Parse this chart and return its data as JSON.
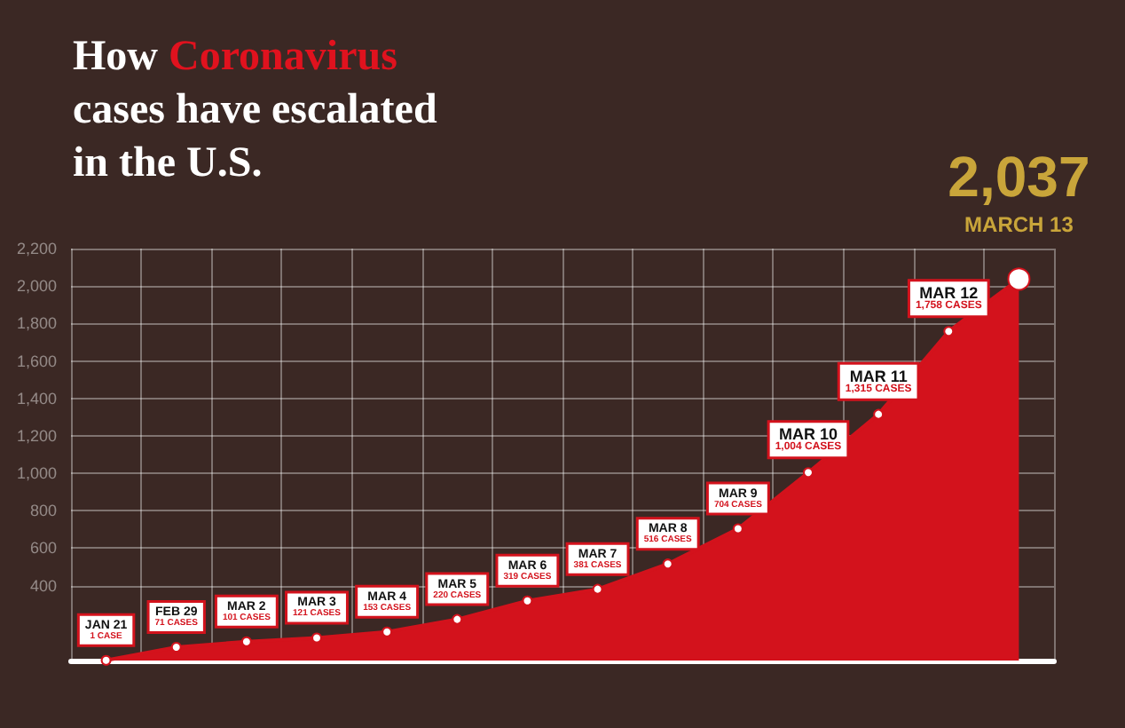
{
  "chart_data": {
    "type": "area",
    "title": "How Coronavirus cases have escalated in the U.S.",
    "categories": [
      "JAN 21",
      "FEB 29",
      "MAR 2",
      "MAR 3",
      "MAR 4",
      "MAR 5",
      "MAR 6",
      "MAR 7",
      "MAR 8",
      "MAR 9",
      "MAR 10",
      "MAR 11",
      "MAR 12",
      "MARCH 13"
    ],
    "series": [
      {
        "color": "#d3121c",
        "values": [
          1,
          71,
          101,
          121,
          153,
          220,
          319,
          381,
          516,
          704,
          1004,
          1315,
          1758,
          2037
        ],
        "value_labels": [
          "1 CASE",
          "71 CASES",
          "101 CASES",
          "121 CASES",
          "153 CASES",
          "220 CASES",
          "319 CASES",
          "381 CASES",
          "516 CASES",
          "704 CASES",
          "1,004 CASES",
          "1,315 CASES",
          "1,758 CASES",
          "2,037"
        ]
      }
    ],
    "ylim": [
      0,
      2200
    ],
    "yticks": [
      400,
      600,
      800,
      {
        "value": 1000,
        "label": "1,000"
      },
      {
        "value": 1200,
        "label": "1,200"
      },
      {
        "value": 1400,
        "label": "1,400"
      },
      {
        "value": 1600,
        "label": "1,600"
      },
      {
        "value": 1800,
        "label": "1,800"
      },
      {
        "value": 2000,
        "label": "2,000"
      },
      {
        "value": 2200,
        "label": "2,200"
      }
    ],
    "tick_labels": "y",
    "grid": true,
    "marker": "circle"
  }
}
